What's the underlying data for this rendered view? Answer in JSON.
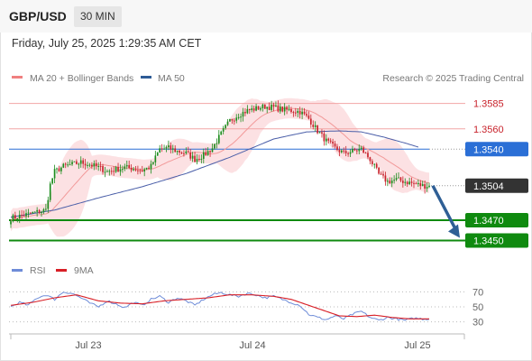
{
  "header": {
    "symbol": "GBP/USD",
    "timeframe": "30 MIN",
    "datetime": "Friday, July 25, 2025 1:29:35 AM CET"
  },
  "legend": {
    "ma20_bb": {
      "label": "MA 20 + Bollinger Bands",
      "color": "#f08080"
    },
    "ma50": {
      "label": "MA 50",
      "color": "#2e5c96"
    },
    "credit": "Research © 2025 Trading Central"
  },
  "colors": {
    "up": "#1e8c1e",
    "down": "#c8232c",
    "band": "#f9c9cc",
    "ma20": "#f29a9a",
    "ma50": "#4a5ea8",
    "pivot": "#2b6fd6",
    "support": "#0f8a0f",
    "arrow": "#2f5f95",
    "rsi": "#6e8cd8",
    "rsi9": "#d81f26"
  },
  "chart_data": [
    {
      "type": "candlestick",
      "instrument": "GBP/USD",
      "timeframe": "30 MIN",
      "x_ticks": [
        "Jul 23",
        "Jul 24",
        "Jul 25"
      ],
      "ylim": [
        1.3438,
        1.3598
      ],
      "levels": [
        {
          "price": 1.3585,
          "label": "1.3585",
          "kind": "resistance"
        },
        {
          "price": 1.356,
          "label": "1.3560",
          "kind": "resistance"
        },
        {
          "price": 1.354,
          "label": "1.3540",
          "kind": "pivot"
        },
        {
          "price": 1.347,
          "label": "1.3470",
          "kind": "support"
        },
        {
          "price": 1.345,
          "label": "1.3450",
          "kind": "support"
        }
      ],
      "last_price": {
        "price": 1.3504,
        "label": "1.3504"
      },
      "projection": {
        "from": 1.3504,
        "to": 1.345
      },
      "close_path": [
        [
          0,
          1.3472
        ],
        [
          4,
          1.3474
        ],
        [
          8,
          1.3476
        ],
        [
          12,
          1.3478
        ],
        [
          16,
          1.348
        ],
        [
          18,
          1.3505
        ],
        [
          20,
          1.3518
        ],
        [
          24,
          1.3523
        ],
        [
          28,
          1.3525
        ],
        [
          32,
          1.3527
        ],
        [
          36,
          1.3525
        ],
        [
          40,
          1.3522
        ],
        [
          44,
          1.3518
        ],
        [
          48,
          1.352
        ],
        [
          52,
          1.3522
        ],
        [
          56,
          1.3521
        ],
        [
          60,
          1.3519
        ],
        [
          64,
          1.3523
        ],
        [
          68,
          1.354
        ],
        [
          72,
          1.3541
        ],
        [
          76,
          1.3538
        ],
        [
          80,
          1.3536
        ],
        [
          84,
          1.353
        ],
        [
          88,
          1.3534
        ],
        [
          92,
          1.3541
        ],
        [
          96,
          1.3555
        ],
        [
          100,
          1.3568
        ],
        [
          104,
          1.3574
        ],
        [
          108,
          1.3578
        ],
        [
          112,
          1.358
        ],
        [
          116,
          1.3582
        ],
        [
          120,
          1.3581
        ],
        [
          124,
          1.3579
        ],
        [
          128,
          1.3578
        ],
        [
          132,
          1.3577
        ],
        [
          136,
          1.357
        ],
        [
          140,
          1.3558
        ],
        [
          144,
          1.3548
        ],
        [
          148,
          1.3541
        ],
        [
          152,
          1.3536
        ],
        [
          156,
          1.3538
        ],
        [
          160,
          1.354
        ],
        [
          164,
          1.353
        ],
        [
          168,
          1.3515
        ],
        [
          172,
          1.3508
        ],
        [
          176,
          1.351
        ],
        [
          180,
          1.3508
        ],
        [
          184,
          1.3506
        ],
        [
          188,
          1.3504
        ],
        [
          191,
          1.3504
        ]
      ],
      "ma50_path": [
        [
          0,
          1.3473
        ],
        [
          20,
          1.348
        ],
        [
          40,
          1.3492
        ],
        [
          60,
          1.3503
        ],
        [
          80,
          1.3516
        ],
        [
          100,
          1.3532
        ],
        [
          120,
          1.355
        ],
        [
          135,
          1.3557
        ],
        [
          150,
          1.3558
        ],
        [
          160,
          1.3557
        ],
        [
          170,
          1.3552
        ],
        [
          180,
          1.3546
        ],
        [
          186,
          1.3542
        ]
      ]
    },
    {
      "type": "line",
      "indicator": "RSI",
      "series": [
        {
          "name": "RSI",
          "color": "#6e8cd8"
        },
        {
          "name": "9MA",
          "color": "#d81f26"
        }
      ],
      "y_ticks": [
        70,
        50,
        30
      ],
      "ylim": [
        20,
        80
      ],
      "rsi_path": [
        [
          0,
          50
        ],
        [
          4,
          56
        ],
        [
          8,
          52
        ],
        [
          12,
          62
        ],
        [
          16,
          66
        ],
        [
          20,
          60
        ],
        [
          24,
          70
        ],
        [
          28,
          68
        ],
        [
          32,
          62
        ],
        [
          36,
          55
        ],
        [
          40,
          50
        ],
        [
          44,
          58
        ],
        [
          48,
          54
        ],
        [
          52,
          49
        ],
        [
          56,
          56
        ],
        [
          60,
          52
        ],
        [
          64,
          60
        ],
        [
          68,
          64
        ],
        [
          72,
          56
        ],
        [
          76,
          62
        ],
        [
          80,
          58
        ],
        [
          84,
          52
        ],
        [
          88,
          60
        ],
        [
          92,
          66
        ],
        [
          96,
          69
        ],
        [
          100,
          66
        ],
        [
          104,
          64
        ],
        [
          108,
          68
        ],
        [
          112,
          66
        ],
        [
          116,
          62
        ],
        [
          120,
          64
        ],
        [
          124,
          60
        ],
        [
          128,
          56
        ],
        [
          132,
          52
        ],
        [
          136,
          40
        ],
        [
          140,
          36
        ],
        [
          144,
          33
        ],
        [
          148,
          38
        ],
        [
          152,
          34
        ],
        [
          156,
          40
        ],
        [
          160,
          44
        ],
        [
          164,
          36
        ],
        [
          168,
          32
        ],
        [
          172,
          36
        ],
        [
          176,
          34
        ],
        [
          180,
          32
        ],
        [
          184,
          35
        ],
        [
          188,
          34
        ],
        [
          191,
          34
        ]
      ],
      "ma9_path": [
        [
          0,
          52
        ],
        [
          10,
          56
        ],
        [
          20,
          62
        ],
        [
          30,
          66
        ],
        [
          40,
          58
        ],
        [
          50,
          55
        ],
        [
          60,
          54
        ],
        [
          70,
          58
        ],
        [
          80,
          60
        ],
        [
          90,
          62
        ],
        [
          100,
          66
        ],
        [
          110,
          66
        ],
        [
          120,
          64
        ],
        [
          128,
          60
        ],
        [
          136,
          52
        ],
        [
          144,
          44
        ],
        [
          150,
          38
        ],
        [
          158,
          37
        ],
        [
          166,
          39
        ],
        [
          174,
          36
        ],
        [
          182,
          34
        ],
        [
          191,
          34
        ]
      ]
    }
  ]
}
